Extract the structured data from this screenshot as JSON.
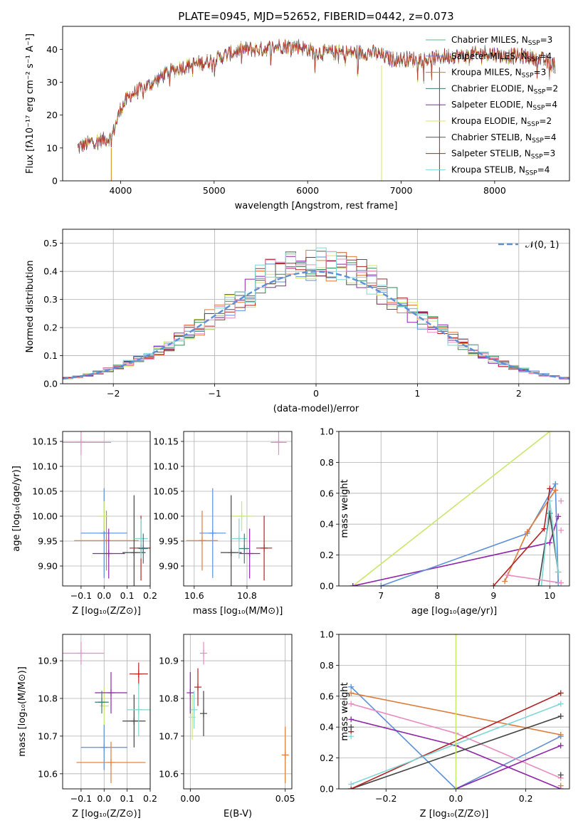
{
  "chart_data": [
    {
      "type": "line",
      "title": "PLATE=0945, MJD=52652, FIBERID=0442, z=0.073",
      "xlabel": "wavelength [Angstrom, rest frame]",
      "ylabel": "Flux [fλ10⁻¹⁷ erg cm⁻² s⁻¹ A⁻¹]",
      "xlim": [
        3380,
        8800
      ],
      "ylim": [
        0,
        47
      ],
      "xticks": [
        4000,
        5000,
        6000,
        7000,
        8000
      ],
      "yticks": [
        0,
        10,
        20,
        30,
        40
      ],
      "grid": false,
      "legend_position": "top-right",
      "series": [
        {
          "name": "Chabrier MILES, N_SSP=3",
          "color": "#5ab88a"
        },
        {
          "name": "Salpeter MILES, N_SSP=4",
          "color": "#7b7fd1"
        },
        {
          "name": "Kroupa MILES, N_SSP=3",
          "color": "#d4820a"
        },
        {
          "name": "Chabrier ELODIE, N_SSP=2",
          "color": "#3d7a7a"
        },
        {
          "name": "Salpeter ELODIE, N_SSP=4",
          "color": "#8e24aa"
        },
        {
          "name": "Kroupa ELODIE, N_SSP=2",
          "color": "#d6e85a"
        },
        {
          "name": "Chabrier STELIB, N_SSP=4",
          "color": "#555555"
        },
        {
          "name": "Salpeter STELIB, N_SSP=3",
          "color": "#b22222"
        },
        {
          "name": "Kroupa STELIB, N_SSP=4",
          "color": "#7ed6d6"
        }
      ],
      "spectrum_envelope": {
        "x": [
          3540,
          3700,
          3900,
          4000,
          4100,
          4300,
          4500,
          4700,
          4900,
          5100,
          5300,
          5500,
          5700,
          5900,
          6100,
          6300,
          6500,
          6700,
          6900,
          7100,
          7300,
          7500,
          7700,
          7900,
          8100,
          8300,
          8500,
          8650
        ],
        "y": [
          10,
          12,
          13,
          22,
          26,
          29,
          33,
          35,
          36,
          38,
          40,
          40,
          41,
          41,
          39,
          39,
          39,
          39,
          37,
          37,
          37,
          38,
          38,
          39,
          38,
          38,
          37,
          35
        ]
      },
      "spikes_x": [
        3900,
        6790,
        7410
      ]
    },
    {
      "type": "line",
      "xlabel": "(data-model)/error",
      "ylabel": "Normed distribution",
      "xlim": [
        -2.5,
        2.5
      ],
      "ylim": [
        0,
        0.55
      ],
      "xticks": [
        -2,
        -1,
        0,
        1,
        2
      ],
      "yticks": [
        0.0,
        0.1,
        0.2,
        0.3,
        0.4,
        0.5
      ],
      "grid": true,
      "legend_position": "top-right",
      "legend": "𝒩(0, 1)",
      "gaussian": {
        "mean": 0,
        "sigma": 1,
        "color": "#5b8fd9"
      },
      "histogram_bin_width": 0.1,
      "histogram_colors": [
        "#5b8fd9",
        "#e07b39",
        "#2e8b57",
        "#8e24aa",
        "#d6e85a",
        "#555555",
        "#b22222",
        "#e88cc0",
        "#7ed6d6"
      ]
    },
    {
      "type": "scatter",
      "xlabel": "Z [log₁₀(Z/Z⊙)]",
      "ylabel": "age  [log₁₀(age/yr)]",
      "xlim": [
        -0.18,
        0.2
      ],
      "ylim": [
        9.86,
        10.17
      ],
      "xticks": [
        -0.1,
        0.0,
        0.1,
        0.2
      ],
      "yticks": [
        9.9,
        9.95,
        10.0,
        10.05,
        10.1,
        10.15
      ],
      "grid": true,
      "points": [
        {
          "x": -0.1,
          "y": 10.148,
          "xerr": 0.13,
          "yerr": 0.025,
          "color": "#e88cc0"
        },
        {
          "x": 0.0,
          "y": 9.966,
          "xerr": 0.1,
          "yerr": 0.09,
          "color": "#5b8fd9"
        },
        {
          "x": 0.01,
          "y": 9.951,
          "xerr": 0.14,
          "yerr": 0.06,
          "color": "#e07b39"
        },
        {
          "x": 0.0,
          "y": 10.0,
          "xerr": 0.02,
          "yerr": 0.03,
          "color": "#c8e86a"
        },
        {
          "x": 0.02,
          "y": 9.925,
          "xerr": 0.07,
          "yerr": 0.05,
          "color": "#8e24aa"
        },
        {
          "x": 0.13,
          "y": 9.927,
          "xerr": 0.05,
          "yerr": 0.115,
          "color": "#444444"
        },
        {
          "x": 0.16,
          "y": 9.936,
          "xerr": 0.05,
          "yerr": 0.065,
          "color": "#b22222"
        },
        {
          "x": 0.16,
          "y": 9.955,
          "xerr": 0.03,
          "yerr": 0.04,
          "color": "#7ed6d6"
        },
        {
          "x": 0.17,
          "y": 9.935,
          "xerr": 0.02,
          "yerr": 0.03,
          "color": "#3d7a7a"
        }
      ]
    },
    {
      "type": "scatter",
      "xlabel": "mass [log₁₀(M/M⊙)]",
      "xlim": [
        10.56,
        10.97
      ],
      "ylim": [
        9.86,
        10.17
      ],
      "xticks": [
        10.6,
        10.8
      ],
      "yticks": [
        9.9,
        9.95,
        10.0,
        10.05,
        10.1,
        10.15
      ],
      "grid": true,
      "points": [
        {
          "x": 10.92,
          "y": 10.148,
          "xerr": 0.03,
          "yerr": 0.025,
          "color": "#e88cc0"
        },
        {
          "x": 10.67,
          "y": 9.966,
          "xerr": 0.05,
          "yerr": 0.09,
          "color": "#5b8fd9"
        },
        {
          "x": 10.63,
          "y": 9.951,
          "xerr": 0.06,
          "yerr": 0.06,
          "color": "#e07b39"
        },
        {
          "x": 10.78,
          "y": 10.0,
          "xerr": 0.04,
          "yerr": 0.03,
          "color": "#c8e86a"
        },
        {
          "x": 10.81,
          "y": 9.925,
          "xerr": 0.04,
          "yerr": 0.05,
          "color": "#8e24aa"
        },
        {
          "x": 10.74,
          "y": 9.927,
          "xerr": 0.04,
          "yerr": 0.115,
          "color": "#444444"
        },
        {
          "x": 10.865,
          "y": 9.936,
          "xerr": 0.03,
          "yerr": 0.065,
          "color": "#b22222"
        },
        {
          "x": 10.77,
          "y": 9.955,
          "xerr": 0.03,
          "yerr": 0.04,
          "color": "#7ed6d6"
        },
        {
          "x": 10.79,
          "y": 9.935,
          "xerr": 0.02,
          "yerr": 0.03,
          "color": "#3d7a7a"
        }
      ]
    },
    {
      "type": "line",
      "xlabel": "age  [log₁₀(age/yr)]",
      "ylabel": "mass weight",
      "xlim": [
        6.25,
        10.35
      ],
      "ylim": [
        0,
        1.0
      ],
      "xticks": [
        7,
        8,
        9,
        10
      ],
      "yticks": [
        0.0,
        0.2,
        0.4,
        0.6,
        0.8,
        1.0
      ],
      "grid": true,
      "series": [
        {
          "color": "#c8e86a",
          "x": [
            6.5,
            10.0
          ],
          "y": [
            0.0,
            1.0
          ]
        },
        {
          "color": "#8e24aa",
          "x": [
            6.5,
            10.0,
            10.15
          ],
          "y": [
            0.0,
            0.28,
            0.45
          ]
        },
        {
          "color": "#5b8fd9",
          "x": [
            7.0,
            9.6,
            10.1,
            10.15
          ],
          "y": [
            0.0,
            0.34,
            0.66,
            0.02
          ]
        },
        {
          "color": "#e07b39",
          "x": [
            9.2,
            9.6,
            10.1
          ],
          "y": [
            0.03,
            0.35,
            0.62
          ]
        },
        {
          "color": "#b22222",
          "x": [
            9.0,
            9.9,
            10.0
          ],
          "y": [
            0.0,
            0.37,
            0.63
          ]
        },
        {
          "color": "#444444",
          "x": [
            9.8,
            10.0,
            10.15
          ],
          "y": [
            0.0,
            0.47,
            0.09
          ]
        },
        {
          "color": "#e88cc0",
          "x": [
            9.25,
            10.2
          ],
          "y": [
            0.07,
            0.02
          ]
        },
        {
          "color": "#7ed6d6",
          "x": [
            9.85,
            10.0,
            10.15
          ],
          "y": [
            0.0,
            0.55,
            0.09
          ]
        }
      ],
      "extra_points": [
        {
          "x": 10.2,
          "y": 0.55,
          "color": "#e88cc0"
        },
        {
          "x": 10.2,
          "y": 0.36,
          "color": "#e88cc0"
        }
      ]
    },
    {
      "type": "scatter",
      "xlabel": "Z [log₁₀(Z/Z⊙)]",
      "ylabel": "mass [log₁₀(M/M⊙)]",
      "xlim": [
        -0.18,
        0.2
      ],
      "ylim": [
        10.56,
        10.97
      ],
      "xticks": [
        -0.1,
        0.0,
        0.1,
        0.2
      ],
      "yticks": [
        10.6,
        10.7,
        10.8,
        10.9
      ],
      "grid": true,
      "points": [
        {
          "x": -0.1,
          "y": 10.92,
          "xerr": 0.1,
          "yerr": 0.03,
          "color": "#e88cc0"
        },
        {
          "x": 0.0,
          "y": 10.67,
          "xerr": 0.1,
          "yerr": 0.06,
          "color": "#5b8fd9"
        },
        {
          "x": 0.03,
          "y": 10.63,
          "xerr": 0.15,
          "yerr": 0.055,
          "color": "#e07b39"
        },
        {
          "x": 0.0,
          "y": 10.78,
          "xerr": 0.02,
          "yerr": 0.05,
          "color": "#c8e86a"
        },
        {
          "x": 0.03,
          "y": 10.815,
          "xerr": 0.07,
          "yerr": 0.055,
          "color": "#8e24aa"
        },
        {
          "x": 0.13,
          "y": 10.74,
          "xerr": 0.05,
          "yerr": 0.07,
          "color": "#444444"
        },
        {
          "x": 0.15,
          "y": 10.865,
          "xerr": 0.04,
          "yerr": 0.03,
          "color": "#b22222"
        },
        {
          "x": 0.15,
          "y": 10.77,
          "xerr": 0.05,
          "yerr": 0.07,
          "color": "#7ed6d6"
        },
        {
          "x": -0.01,
          "y": 10.79,
          "xerr": 0.03,
          "yerr": 0.03,
          "color": "#3d7a7a"
        }
      ]
    },
    {
      "type": "scatter",
      "xlabel": "E(B-V)",
      "xlim": [
        -0.0035,
        0.0535
      ],
      "ylim": [
        10.56,
        10.97
      ],
      "xticks": [
        0.0,
        0.05
      ],
      "xtick_labels": [
        "0.00",
        "0.05"
      ],
      "yticks": [
        10.6,
        10.7,
        10.8,
        10.9
      ],
      "grid": true,
      "points": [
        {
          "x": 0.007,
          "y": 10.92,
          "yerr": 0.03,
          "color": "#e88cc0"
        },
        {
          "x": 0.0,
          "y": 10.815,
          "yerr": 0.055,
          "color": "#8e24aa"
        },
        {
          "x": 0.004,
          "y": 10.83,
          "yerr": 0.05,
          "color": "#b22222"
        },
        {
          "x": 0.007,
          "y": 10.76,
          "yerr": 0.06,
          "color": "#444444"
        },
        {
          "x": 0.001,
          "y": 10.75,
          "yerr": 0.06,
          "color": "#c8e86a"
        },
        {
          "x": 0.002,
          "y": 10.77,
          "yerr": 0.05,
          "color": "#7ed6d6"
        },
        {
          "x": 0.05,
          "y": 10.65,
          "yerr": 0.075,
          "color": "#e07b39"
        }
      ]
    },
    {
      "type": "line",
      "xlabel": "Z [log₁₀(Z/Z⊙)]",
      "ylabel": "mass weight",
      "xlim": [
        -0.335,
        0.325
      ],
      "ylim": [
        0,
        1.0
      ],
      "xticks": [
        -0.2,
        0.0,
        0.2
      ],
      "xtick_labels": [
        "−0.2",
        "0.0",
        "0.2"
      ],
      "yticks": [
        0.0,
        0.2,
        0.4,
        0.6,
        0.8,
        1.0
      ],
      "grid": true,
      "series": [
        {
          "color": "#5b8fd9",
          "x": [
            -0.3,
            0.0,
            0.3
          ],
          "y": [
            0.66,
            0.0,
            0.34
          ]
        },
        {
          "color": "#e07b39",
          "x": [
            -0.3,
            0.3
          ],
          "y": [
            0.62,
            0.35
          ]
        },
        {
          "color": "#e88cc0",
          "x": [
            -0.3,
            0.0,
            0.3
          ],
          "y": [
            0.55,
            0.36,
            0.07
          ]
        },
        {
          "color": "#8e24aa",
          "x": [
            -0.3,
            0.0,
            0.3
          ],
          "y": [
            0.45,
            0.28,
            0.0
          ]
        },
        {
          "color": "#444444",
          "x": [
            -0.3,
            0.3
          ],
          "y": [
            0.0,
            0.47
          ]
        },
        {
          "color": "#b22222",
          "x": [
            -0.3,
            0.3
          ],
          "y": [
            0.0,
            0.62
          ]
        },
        {
          "color": "#7ed6d6",
          "x": [
            -0.3,
            0.3
          ],
          "y": [
            0.03,
            0.55
          ]
        },
        {
          "color": "#8e24aa",
          "x": [
            0.0,
            0.3
          ],
          "y": [
            0.0,
            0.28
          ]
        },
        {
          "color": "#c8e86a",
          "x": [
            0.0,
            0.0
          ],
          "y": [
            0.0,
            1.0
          ]
        }
      ],
      "extra_points": [
        {
          "x": -0.3,
          "y": 0.37,
          "color": "#b22222"
        },
        {
          "x": -0.3,
          "y": 0.4,
          "color": "#444444"
        },
        {
          "x": -0.3,
          "y": 0.34,
          "color": "#7ed6d6"
        },
        {
          "x": 0.3,
          "y": 0.02,
          "color": "#e07b39"
        },
        {
          "x": 0.3,
          "y": 0.09,
          "color": "#444444"
        }
      ]
    }
  ]
}
